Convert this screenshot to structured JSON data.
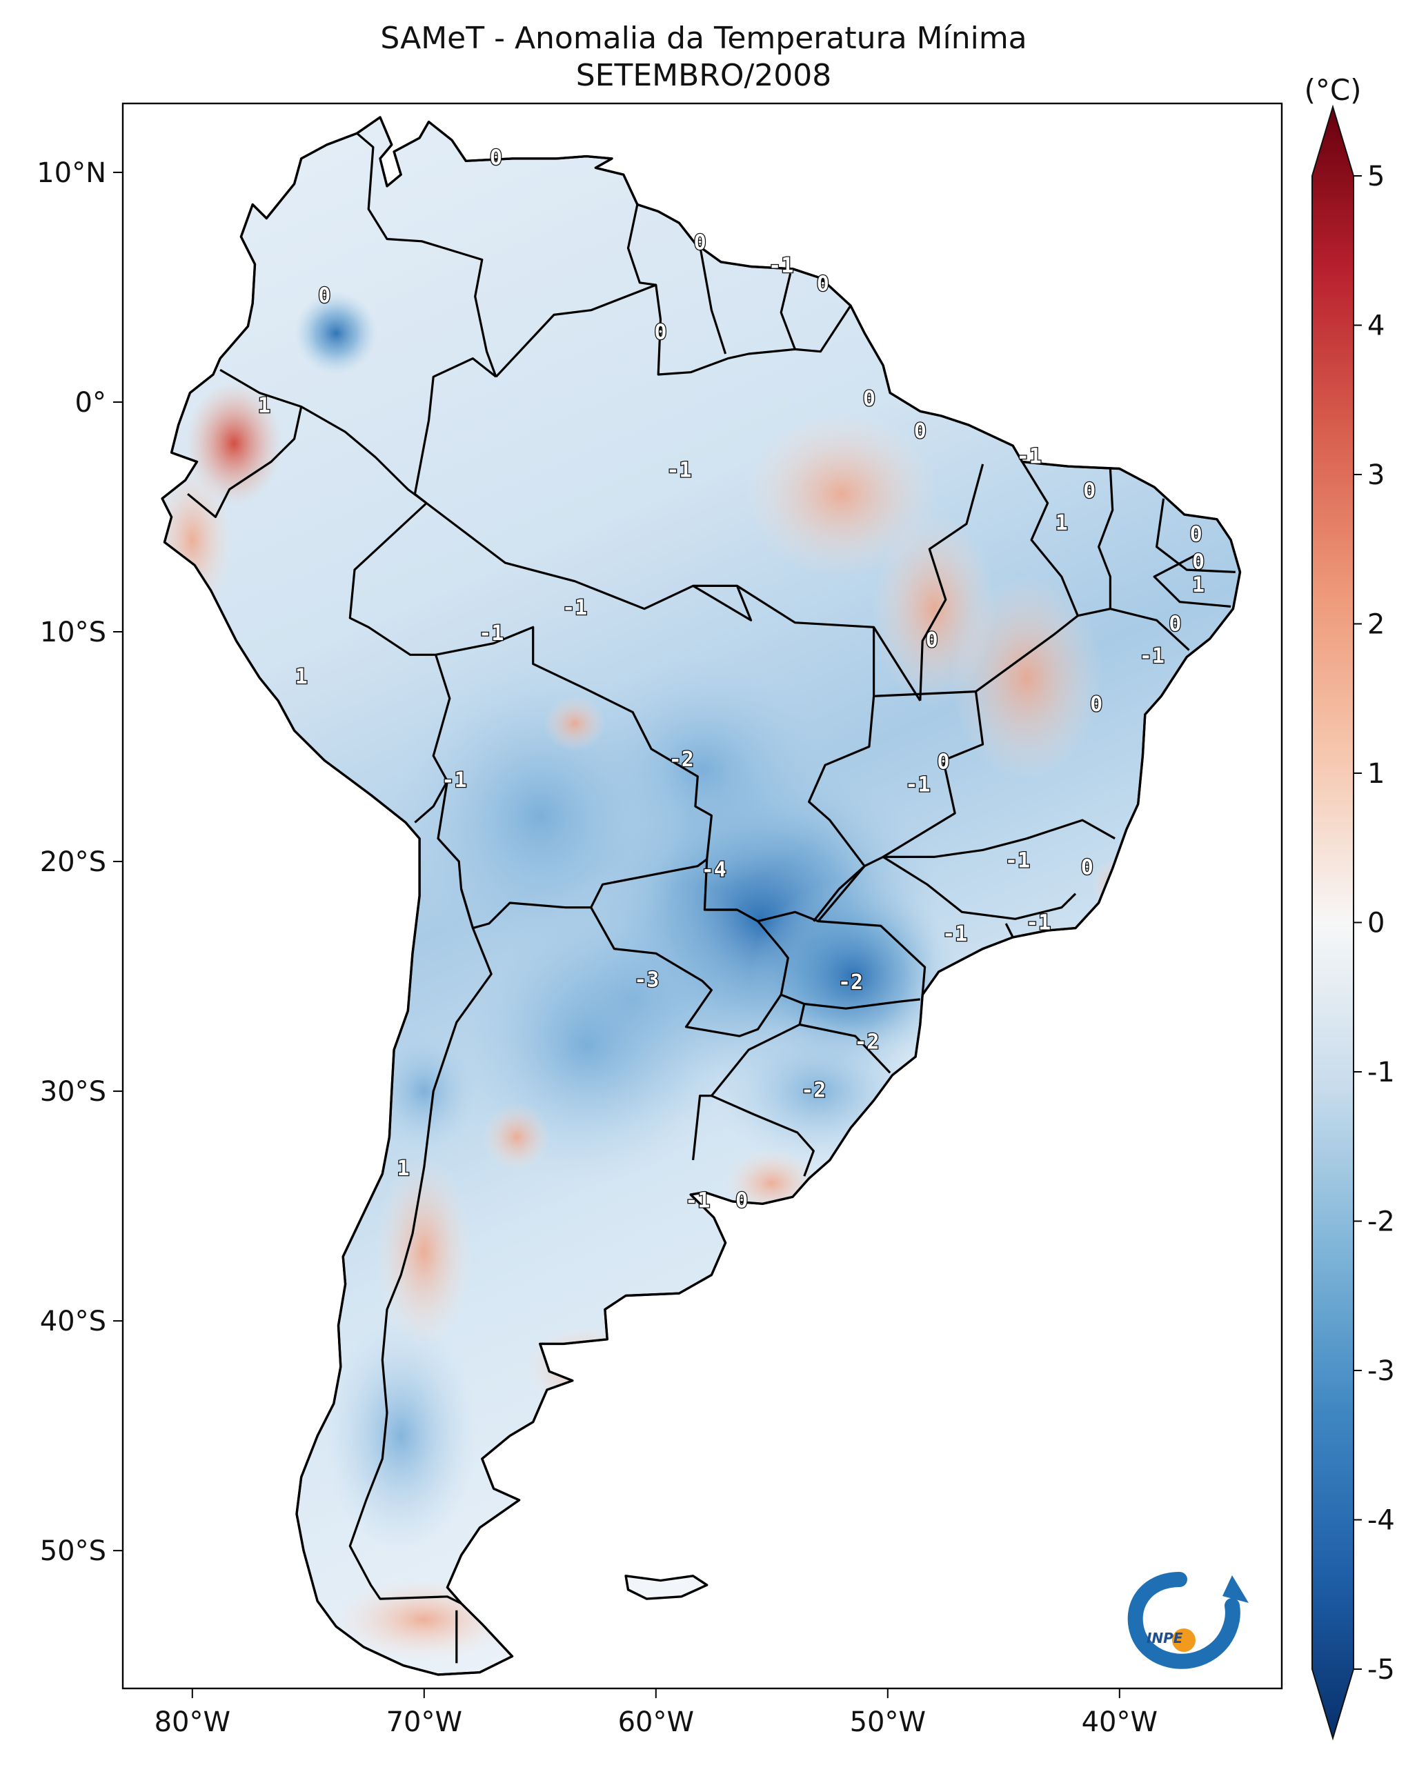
{
  "title": "SAMeT - Anomalia da Temperatura Mínima",
  "subtitle": "SETEMBRO/2008",
  "colorbar": {
    "unit": "(°C)",
    "range": [
      -5,
      5
    ],
    "ticks": [
      "5",
      "4",
      "3",
      "2",
      "1",
      "0",
      "-1",
      "-2",
      "-3",
      "-4",
      "-5"
    ],
    "colors": {
      "neg5": "#08306b",
      "neg4": "#1f5fa8",
      "neg3": "#3f87c2",
      "neg2": "#7fb5d8",
      "neg1": "#c8dcec",
      "zero": "#f7f7f7",
      "pos1": "#f6c8b0",
      "pos2": "#ee9a7a",
      "pos3": "#d85f4e",
      "pos4": "#b8202e",
      "pos5": "#67000d"
    }
  },
  "map": {
    "lon_ticks": [
      "80°W",
      "70°W",
      "60°W",
      "50°W",
      "40°W"
    ],
    "lat_ticks": [
      "10°N",
      "0°",
      "10°S",
      "20°S",
      "30°S",
      "40°S",
      "50°S"
    ],
    "lon_range": [
      -83,
      -33
    ],
    "lat_range": [
      -56,
      13
    ],
    "contour_labels": [
      {
        "text": "0",
        "lon": -66.9,
        "lat": 10.6
      },
      {
        "text": "0",
        "lon": -58.1,
        "lat": 6.9
      },
      {
        "text": "-1",
        "lon": -54.6,
        "lat": 5.9
      },
      {
        "text": "0",
        "lon": -52.8,
        "lat": 5.1
      },
      {
        "text": "0",
        "lon": -74.3,
        "lat": 4.6
      },
      {
        "text": "0",
        "lon": -59.8,
        "lat": 3.0
      },
      {
        "text": "0",
        "lon": -50.8,
        "lat": 0.1
      },
      {
        "text": "1",
        "lon": -76.9,
        "lat": -0.2
      },
      {
        "text": "0",
        "lon": -48.6,
        "lat": -1.3
      },
      {
        "text": "-1",
        "lon": -59.0,
        "lat": -3.0
      },
      {
        "text": "-1",
        "lon": -43.9,
        "lat": -2.4
      },
      {
        "text": "0",
        "lon": -41.3,
        "lat": -3.9
      },
      {
        "text": "1",
        "lon": -42.5,
        "lat": -5.3
      },
      {
        "text": "0",
        "lon": -36.7,
        "lat": -5.8
      },
      {
        "text": "0",
        "lon": -36.6,
        "lat": -7.0
      },
      {
        "text": "1",
        "lon": -36.6,
        "lat": -8.0
      },
      {
        "text": "-1",
        "lon": -63.5,
        "lat": -9.0
      },
      {
        "text": "-1",
        "lon": -67.1,
        "lat": -10.1
      },
      {
        "text": "0",
        "lon": -37.6,
        "lat": -9.7
      },
      {
        "text": "0",
        "lon": -48.1,
        "lat": -10.4
      },
      {
        "text": "-1",
        "lon": -38.6,
        "lat": -11.1
      },
      {
        "text": "1",
        "lon": -75.3,
        "lat": -12.0
      },
      {
        "text": "0",
        "lon": -41.0,
        "lat": -13.2
      },
      {
        "text": "-2",
        "lon": -58.9,
        "lat": -15.6
      },
      {
        "text": "0",
        "lon": -47.6,
        "lat": -15.7
      },
      {
        "text": "-1",
        "lon": -48.7,
        "lat": -16.7
      },
      {
        "text": "-1",
        "lon": -68.7,
        "lat": -16.5
      },
      {
        "text": "-4",
        "lon": -57.5,
        "lat": -20.4
      },
      {
        "text": "-1",
        "lon": -44.4,
        "lat": -20.0
      },
      {
        "text": "0",
        "lon": -41.4,
        "lat": -20.3
      },
      {
        "text": "-1",
        "lon": -43.5,
        "lat": -22.7
      },
      {
        "text": "-1",
        "lon": -47.1,
        "lat": -23.2
      },
      {
        "text": "-3",
        "lon": -60.4,
        "lat": -25.2
      },
      {
        "text": "-2",
        "lon": -51.6,
        "lat": -25.3
      },
      {
        "text": "-2",
        "lon": -50.9,
        "lat": -27.9
      },
      {
        "text": "-2",
        "lon": -53.2,
        "lat": -30.0
      },
      {
        "text": "1",
        "lon": -70.9,
        "lat": -33.4
      },
      {
        "text": "-1",
        "lon": -58.2,
        "lat": -34.8
      },
      {
        "text": "0",
        "lon": -56.3,
        "lat": -34.8
      }
    ]
  }
}
